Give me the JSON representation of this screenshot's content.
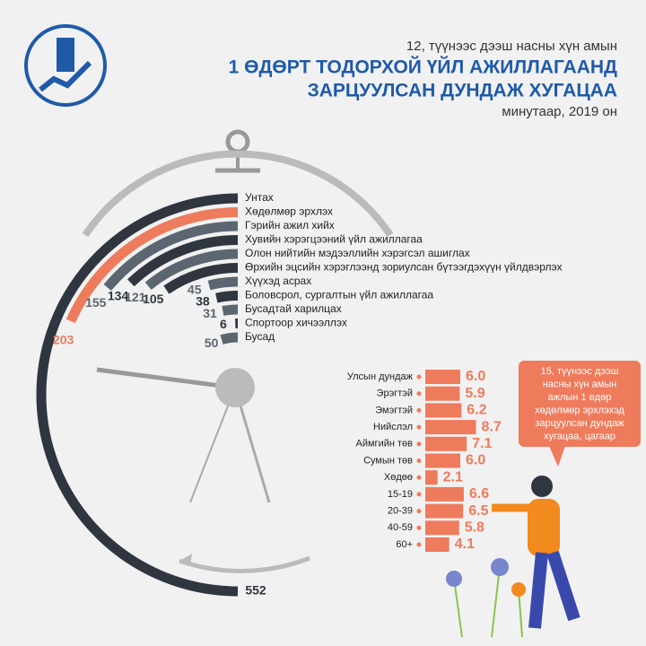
{
  "header": {
    "subtitle": "12, түүнээс дээш насны хүн амын",
    "title": [
      "1 ӨДӨРТ ТОДОРХОЙ ҮЙЛ АЖИЛЛАГААНД",
      "ЗАРЦУУЛСАН ДУНДАЖ ХУГАЦАА"
    ],
    "unit": "минутаар, 2019 он"
  },
  "chart_data": [
    {
      "type": "radial_bar",
      "categories": [
        "Унтах",
        "Хөдөлмөр эрхлэх",
        "Гэрийн ажил хийх",
        "Хувийн хэрэгцээний үйл ажиллагаа",
        "Олон нийтийн мэдээллийн хэрэгсэл ашиглах",
        "Өрхийн эцсийн хэрэглээнд зориулсан бүтээгдэхүүн үйлдвэрлэх",
        "Хүүхэд асрах",
        "Боловсрол, сургалтын үйл ажиллагаа",
        "Бусадтай харилцах",
        "Спортоор хичээллэх",
        "Бусад"
      ],
      "values": [
        552,
        203,
        155,
        134,
        121,
        105,
        45,
        38,
        31,
        6,
        50
      ],
      "colors": [
        "#2f3640",
        "#ee7b5c",
        "#5c6670",
        "#2f3640",
        "#5c6670",
        "#2f3640",
        "#5c6670",
        "#2f3640",
        "#5c6670",
        "#2f3640",
        "#5c6670"
      ]
    },
    {
      "type": "bar",
      "categories": [
        "Улсын дундаж",
        "Эрэгтэй",
        "Эмэгтэй",
        "Нийслэл",
        "Аймгийн төв",
        "Сумын төв",
        "Хөдөө",
        "15-19",
        "20-39",
        "40-59",
        "60+"
      ],
      "values": [
        6.0,
        5.9,
        6.2,
        8.7,
        7.1,
        6.0,
        2.1,
        6.6,
        6.5,
        5.8,
        4.1
      ],
      "value_labels": [
        "6.0",
        "5.9",
        "6.2",
        "8.7",
        "7.1",
        "6.0",
        "2.1",
        "6.6",
        "6.5",
        "5.8",
        "4.1"
      ],
      "color": "#ee7b5c"
    }
  ],
  "callout": [
    "15, түүнээс дээш",
    "насны хүн амын",
    "ажлын 1 өдөр",
    "хөдөлмөр эрхлэхэд",
    "зарцуулсан дундаж",
    "хугацаа, цагаар"
  ]
}
